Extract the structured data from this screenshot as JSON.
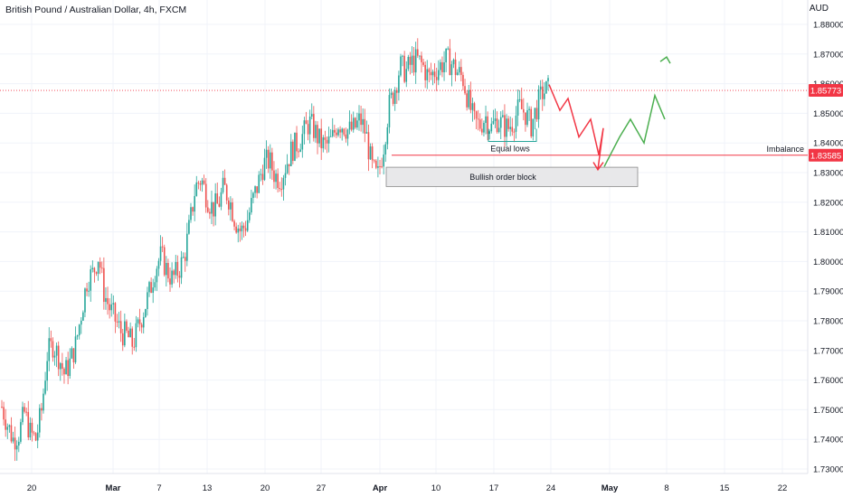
{
  "header": {
    "title": "British Pound / Australian Dollar, 4h, FXCM",
    "currency": "AUD"
  },
  "chart_data": {
    "type": "candlestick",
    "title": "British Pound / Australian Dollar, 4h, FXCM",
    "ylim": [
      1.727,
      1.882
    ],
    "y_ticks": [
      "1.88000",
      "1.87000",
      "1.86000",
      "1.85000",
      "1.84000",
      "1.83000",
      "1.82000",
      "1.81000",
      "1.80000",
      "1.79000",
      "1.78000",
      "1.77000",
      "1.76000",
      "1.75000",
      "1.74000",
      "1.73000"
    ],
    "x_ticks": [
      {
        "label": "20",
        "bold": false
      },
      {
        "label": "Mar",
        "bold": true
      },
      {
        "label": "7",
        "bold": false
      },
      {
        "label": "13",
        "bold": false
      },
      {
        "label": "20",
        "bold": false
      },
      {
        "label": "27",
        "bold": false
      },
      {
        "label": "Apr",
        "bold": true
      },
      {
        "label": "10",
        "bold": false
      },
      {
        "label": "17",
        "bold": false
      },
      {
        "label": "24",
        "bold": false
      },
      {
        "label": "May",
        "bold": true
      },
      {
        "label": "8",
        "bold": false
      },
      {
        "label": "15",
        "bold": false
      },
      {
        "label": "22",
        "bold": false
      }
    ],
    "price_path": [
      1.751,
      1.745,
      1.74,
      1.742,
      1.749,
      1.742,
      1.74,
      1.75,
      1.769,
      1.772,
      1.768,
      1.762,
      1.766,
      1.772,
      1.783,
      1.794,
      1.796,
      1.802,
      1.789,
      1.784,
      1.78,
      1.776,
      1.775,
      1.772,
      1.778,
      1.784,
      1.79,
      1.798,
      1.802,
      1.797,
      1.794,
      1.797,
      1.801,
      1.812,
      1.825,
      1.828,
      1.822,
      1.818,
      1.819,
      1.825,
      1.821,
      1.814,
      1.81,
      1.813,
      1.82,
      1.826,
      1.833,
      1.834,
      1.829,
      1.828,
      1.833,
      1.838,
      1.84,
      1.843,
      1.847,
      1.844,
      1.84,
      1.839,
      1.841,
      1.847,
      1.846,
      1.844,
      1.845,
      1.848,
      1.843,
      1.832,
      1.828,
      1.838,
      1.852,
      1.858,
      1.866,
      1.864,
      1.867,
      1.868,
      1.866,
      1.862,
      1.864,
      1.866,
      1.868,
      1.867,
      1.864,
      1.862,
      1.854,
      1.847,
      1.846,
      1.849,
      1.845,
      1.848,
      1.846,
      1.845,
      1.848,
      1.852,
      1.85,
      1.846,
      1.852,
      1.857,
      1.858
    ],
    "current_price": {
      "label": "1.85773",
      "value": 1.85773,
      "color": "#f23645"
    },
    "imbalance": {
      "label": "Imbalance",
      "price_label": "1.83585",
      "value": 1.83585,
      "color": "#f23645"
    },
    "order_block": {
      "label": "Bullish order block",
      "top": 1.8318,
      "bottom": 1.8253
    },
    "equal_lows": {
      "label": "Equal lows",
      "value": 1.8405
    },
    "projection_down": [
      1.8597,
      1.851,
      1.855,
      1.842,
      1.848,
      1.836,
      1.845,
      1.831
    ],
    "projection_up": [
      1.832,
      1.842,
      1.848,
      1.84,
      1.856,
      1.848,
      1.869
    ],
    "colors": {
      "up": "#26a69a",
      "down": "#ef5350",
      "projection_down": "#f23645",
      "projection_up": "#4caf50",
      "equal_lows": "#26a69a"
    }
  }
}
